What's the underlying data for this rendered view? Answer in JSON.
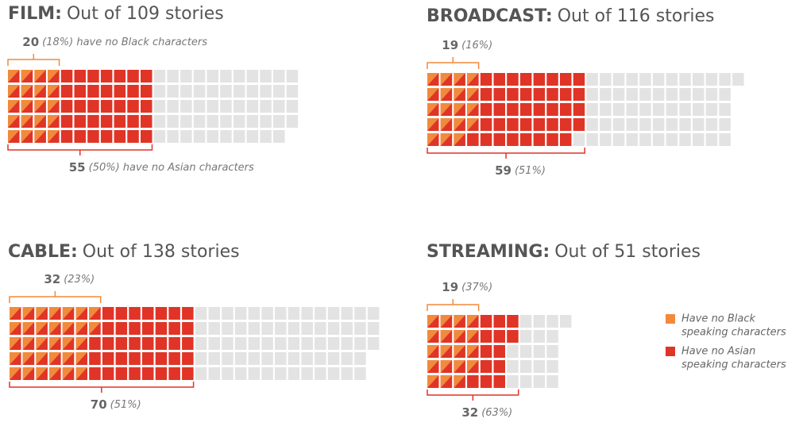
{
  "colors": {
    "no_black": "#f28a3c",
    "no_asian": "#e03427",
    "other": "#e3e3e3"
  },
  "panels": [
    {
      "label": "FILM:",
      "subtitle": "Out of 109 stories",
      "total": 109,
      "no_black": 20,
      "no_black_note": "(18%) have no Black characters",
      "no_asian": 55,
      "no_asian_note": "(50%) have no Asian characters"
    },
    {
      "label": "BROADCAST:",
      "subtitle": "Out of 116 stories",
      "total": 116,
      "no_black": 19,
      "no_black_note": "(16%)",
      "no_asian": 59,
      "no_asian_note": "(51%)"
    },
    {
      "label": "CABLE:",
      "subtitle": "Out of 138 stories",
      "total": 138,
      "no_black": 32,
      "no_black_note": "(23%)",
      "no_asian": 70,
      "no_asian_note": "(51%)"
    },
    {
      "label": "STREAMING:",
      "subtitle": "Out of 51 stories",
      "total": 51,
      "no_black": 19,
      "no_black_note": "(37%)",
      "no_asian": 32,
      "no_asian_note": "(63%)"
    }
  ],
  "legend": {
    "no_black": [
      "Have no Black",
      "speaking characters"
    ],
    "no_asian": [
      "Have no Asian",
      "speaking characters"
    ]
  }
}
